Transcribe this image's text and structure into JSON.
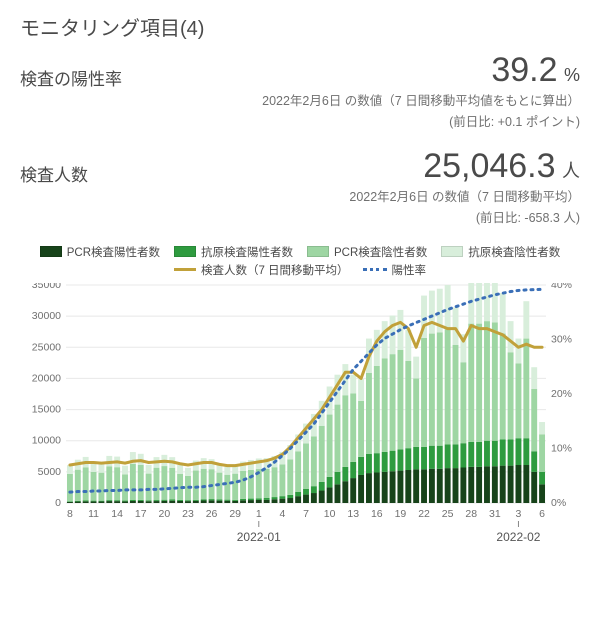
{
  "title": "モニタリング項目(4)",
  "metrics": {
    "positivity": {
      "label": "検査の陽性率",
      "value": "39.2",
      "unit": "%",
      "sub1": "2022年2月6日 の数値（7 日間移動平均値をもとに算出）",
      "sub2": "(前日比: +0.1 ポイント)"
    },
    "tests": {
      "label": "検査人数",
      "value": "25,046.3",
      "unit": "人",
      "sub1": "2022年2月6日 の数値（7 日間移動平均）",
      "sub2": "(前日比: -658.3 人)"
    }
  },
  "legend": [
    {
      "label": "PCR検査陽性者数",
      "type": "box",
      "color": "#17431a"
    },
    {
      "label": "抗原検査陽性者数",
      "type": "box",
      "color": "#2e9b3f"
    },
    {
      "label": "PCR検査陰性者数",
      "type": "box",
      "color": "#9ed6a3"
    },
    {
      "label": "抗原検査陰性者数",
      "type": "box",
      "color": "#d8eedb"
    },
    {
      "label": "検査人数（7 日間移動平均）",
      "type": "line",
      "color": "#c1a13a"
    },
    {
      "label": "陽性率",
      "type": "dash",
      "color": "#3a6fb7"
    }
  ],
  "chart": {
    "y_left": {
      "min": 0,
      "max": 35000,
      "step": 5000
    },
    "y_right": {
      "min": 0,
      "max": 40,
      "step": 10,
      "suffix": "%"
    },
    "x_labels": [
      "8",
      "11",
      "14",
      "17",
      "20",
      "23",
      "26",
      "29",
      "1",
      "4",
      "7",
      "10",
      "13",
      "16",
      "19",
      "22",
      "25",
      "28",
      "31",
      "3",
      "6"
    ],
    "x_month_markers": [
      {
        "index": 8,
        "label": "2022-01"
      },
      {
        "index": 19,
        "label": "2022-02"
      }
    ],
    "colors": {
      "pcr_pos": "#17431a",
      "ant_pos": "#2e9b3f",
      "pcr_neg": "#9ed6a3",
      "ant_neg": "#d8eedb",
      "avg_line": "#c1a13a",
      "rate_line": "#3a6fb7",
      "grid": "#e8e8e8",
      "axis_text": "#707070"
    },
    "days": 61,
    "bars": {
      "pcr_pos": [
        180,
        230,
        270,
        260,
        250,
        310,
        300,
        260,
        320,
        330,
        280,
        310,
        350,
        370,
        330,
        300,
        340,
        400,
        420,
        380,
        360,
        340,
        430,
        470,
        490,
        500,
        600,
        700,
        800,
        1100,
        1350,
        1600,
        2000,
        2500,
        3000,
        3500,
        4000,
        4500,
        4800,
        4900,
        5000,
        5100,
        5200,
        5300,
        5400,
        5400,
        5500,
        5500,
        5600,
        5600,
        5700,
        5800,
        5800,
        5900,
        5900,
        6000,
        6000,
        6100,
        6100,
        5000,
        3000
      ],
      "ant_pos": [
        100,
        120,
        130,
        120,
        120,
        150,
        150,
        130,
        160,
        170,
        140,
        160,
        180,
        190,
        160,
        150,
        170,
        200,
        210,
        200,
        180,
        170,
        220,
        240,
        260,
        300,
        350,
        400,
        500,
        700,
        900,
        1100,
        1400,
        1700,
        2000,
        2300,
        2600,
        2900,
        3100,
        3100,
        3200,
        3300,
        3400,
        3500,
        3600,
        3600,
        3700,
        3700,
        3800,
        3800,
        3900,
        4000,
        4000,
        4100,
        4100,
        4200,
        4200,
        4300,
        4300,
        3300,
        2000
      ],
      "pcr_neg": [
        4400,
        5000,
        5300,
        4600,
        4500,
        5400,
        5300,
        4200,
        5800,
        5600,
        4300,
        5200,
        5400,
        5100,
        4200,
        3900,
        4700,
        4900,
        4800,
        4300,
        4000,
        4200,
        4500,
        4600,
        4700,
        4700,
        4800,
        5100,
        5700,
        6500,
        7300,
        8000,
        9000,
        10000,
        10800,
        11500,
        11000,
        9000,
        13000,
        14000,
        15000,
        15500,
        16000,
        14000,
        11000,
        17500,
        18000,
        18200,
        18500,
        16000,
        13000,
        19000,
        19000,
        19200,
        19000,
        17000,
        14000,
        12000,
        16000,
        10000,
        6000
      ],
      "ant_neg": [
        1400,
        1600,
        1700,
        1500,
        1400,
        1700,
        1700,
        1400,
        1900,
        1800,
        1400,
        1700,
        1800,
        1700,
        1400,
        1300,
        1600,
        1700,
        1600,
        1400,
        1300,
        1400,
        1500,
        1600,
        1700,
        1700,
        1800,
        2000,
        2300,
        2700,
        3200,
        3600,
        4000,
        4500,
        4800,
        5000,
        3000,
        3500,
        5500,
        5800,
        6000,
        6200,
        6400,
        5000,
        3500,
        6800,
        6900,
        7000,
        7100,
        6000,
        4500,
        7200,
        7200,
        7300,
        7200,
        6500,
        5000,
        4000,
        6000,
        3500,
        2000
      ]
    },
    "avg_line": [
      6100,
      6300,
      6500,
      6500,
      6400,
      6500,
      6600,
      6400,
      6700,
      6800,
      6500,
      6600,
      6700,
      6600,
      6300,
      6100,
      6300,
      6500,
      6500,
      6200,
      6000,
      6000,
      6200,
      6400,
      6600,
      6800,
      7200,
      7800,
      9000,
      10500,
      12000,
      13500,
      15000,
      17000,
      19000,
      21000,
      21000,
      20000,
      23500,
      26000,
      27500,
      28500,
      29000,
      28000,
      25000,
      28500,
      29000,
      28500,
      28000,
      28000,
      26000,
      28500,
      28000,
      28000,
      27500,
      27000,
      26000,
      25000,
      25500,
      25000,
      25000
    ],
    "rate_line": [
      2.0,
      2.1,
      2.1,
      2.2,
      2.2,
      2.3,
      2.3,
      2.4,
      2.4,
      2.4,
      2.5,
      2.5,
      2.6,
      2.7,
      2.8,
      2.9,
      2.9,
      3.0,
      3.2,
      3.4,
      3.6,
      3.8,
      4.2,
      4.8,
      5.6,
      6.5,
      7.5,
      8.7,
      10.0,
      11.5,
      13.0,
      14.5,
      16.5,
      18.5,
      20.5,
      22.5,
      24.5,
      26.0,
      27.5,
      29.0,
      30.2,
      31.0,
      31.8,
      32.5,
      33.1,
      33.7,
      34.3,
      34.9,
      35.5,
      36.0,
      36.5,
      37.0,
      37.4,
      37.8,
      38.2,
      38.5,
      38.8,
      39.0,
      39.1,
      39.15,
      39.2
    ]
  }
}
